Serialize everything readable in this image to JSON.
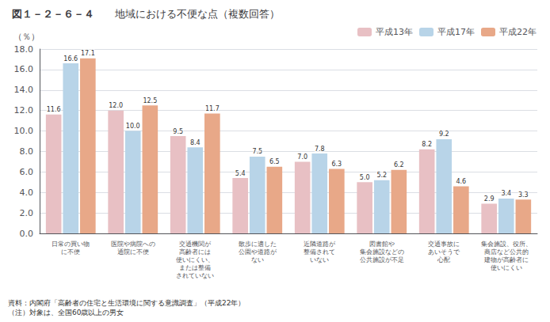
{
  "chart_data": {
    "type": "bar",
    "title": "地域における不便な点（複数回答）",
    "annotations": [
      "図１－２－６－４",
      "資料：内閣府「高齢者の住宅と生活環境に関する意識調査」（平成22年）\n（注）対象は、全国60歳以上の男女"
    ],
    "ylabel": "（％）",
    "categories": [
      "日常の買い物\nに不便",
      "医院や病院への\n通院に不便",
      "交通機関が\n高齢者には\n使いにくい、\nまたは整備\nされていない",
      "散歩に適した\n公園や道路が\nない",
      "近隣道路が\n整備されて\nいない",
      "図書館や\n集会施設などの\n公共施設が不足",
      "交通事故に\nあいそうで\n心配",
      "集会施設、役所、\n商店など公共的\n建物が高齢者に\n使いにくい"
    ],
    "series": [
      {
        "name": "平成13年",
        "color": "#e8c0c4",
        "values": [
          11.6,
          12.0,
          9.5,
          5.4,
          7.0,
          5.0,
          8.2,
          2.9
        ],
        "value_labels": [
          "11.6",
          "12.0",
          "9.5",
          "5.4",
          "7.0",
          "5.0",
          "8.2",
          "2.9"
        ]
      },
      {
        "name": "平成17年",
        "color": "#b8d4e8",
        "values": [
          16.6,
          10.0,
          8.4,
          7.5,
          7.8,
          5.2,
          9.2,
          3.4
        ],
        "value_labels": [
          "16.6",
          "10.0",
          "8.4",
          "7.5",
          "7.8",
          "5.2",
          "9.2",
          "3.4"
        ]
      },
      {
        "name": "平成22年",
        "color": "#e8a888",
        "values": [
          17.1,
          12.5,
          11.7,
          6.5,
          6.3,
          6.2,
          4.6,
          3.3
        ],
        "value_labels": [
          "17.1",
          "12.5",
          "11.7",
          "6.5",
          "6.3",
          "6.2",
          "4.6",
          "3.3"
        ]
      }
    ],
    "ylim": [
      0,
      18
    ],
    "yticks": [
      {
        "value": 0,
        "label": "0.0"
      },
      {
        "value": 2,
        "label": "2.0"
      },
      {
        "value": 4,
        "label": "4.0"
      },
      {
        "value": 6,
        "label": "6.0"
      },
      {
        "value": 8,
        "label": "8.0"
      },
      {
        "value": 10,
        "label": "10.0"
      },
      {
        "value": 12,
        "label": "12.0"
      },
      {
        "value": 14,
        "label": "14.0"
      },
      {
        "value": 16,
        "label": "16.0"
      },
      {
        "value": 18,
        "label": "18.0"
      }
    ],
    "grid": true,
    "legend": "upper right",
    "data_labels": true
  }
}
